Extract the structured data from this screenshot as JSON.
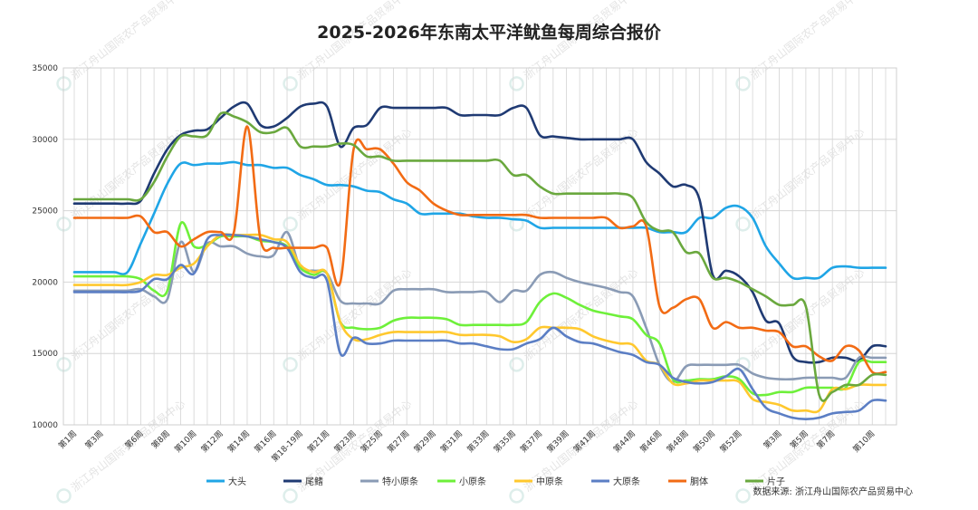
{
  "chart_data": {
    "type": "line",
    "title": "2025-2026年东南太平洋鱿鱼每周综合报价",
    "xlabel": "",
    "ylabel": "",
    "ylim": [
      10000,
      35000
    ],
    "yticks": [
      "10000",
      "15000",
      "20000",
      "25000",
      "30000",
      "35000"
    ],
    "grid": "vertical and horizontal",
    "legend_position": "bottom",
    "source_note": "数据来源:  浙江舟山国际农产品贸易中心",
    "watermark_text": "浙江舟山国际农产品贸易中心",
    "categories": [
      "第1周",
      "第2周",
      "第3周",
      "第4周",
      "第5周",
      "第6周",
      "第7周",
      "第8周",
      "第9周",
      "第10周",
      "第11周",
      "第12周",
      "第13周",
      "第14周",
      "第15周",
      "第16周",
      "第17周",
      "第18-19周",
      "第20周",
      "第21周",
      "第22周",
      "第23周",
      "第24周",
      "第25周",
      "第26周",
      "第27周",
      "第28周",
      "第29周",
      "第30周",
      "第31周",
      "第32周",
      "第33周",
      "第34周",
      "第35周",
      "第36周",
      "第37周",
      "第38周",
      "第39周",
      "第40周",
      "第41周",
      "第42周",
      "第43周",
      "第44周",
      "第45周",
      "第46周",
      "第47周",
      "第48周",
      "第49周",
      "第50周",
      "第51周",
      "第52周",
      "第1周",
      "第2周",
      "第3周",
      "第4周",
      "第5周",
      "第6周",
      "第7周",
      "第8周",
      "第9周",
      "第10周",
      "第11周"
    ],
    "xtick_labels": [
      "第1周",
      "第3周",
      "第6周",
      "第8周",
      "第10周",
      "第12周",
      "第14周",
      "第16周",
      "第18-19周",
      "第21周",
      "第23周",
      "第25周",
      "第27周",
      "第29周",
      "第31周",
      "第33周",
      "第35周",
      "第37周",
      "第39周",
      "第41周",
      "第44周",
      "第46周",
      "第48周",
      "第50周",
      "第52周",
      "第3周",
      "第5周",
      "第7周",
      "第10周"
    ],
    "series": [
      {
        "name": "大头",
        "color": "#1fa5e6",
        "values": [
          20700,
          20700,
          20700,
          20700,
          20700,
          22700,
          24800,
          26900,
          28300,
          28200,
          28300,
          28300,
          28400,
          28200,
          28200,
          28000,
          28000,
          27500,
          27200,
          26800,
          26800,
          26700,
          26400,
          26300,
          25800,
          25500,
          24800,
          24800,
          24800,
          24800,
          24600,
          24500,
          24500,
          24400,
          24300,
          23800,
          23800,
          23800,
          23800,
          23800,
          23800,
          23800,
          23800,
          23800,
          23500,
          23500,
          23500,
          24500,
          24500,
          25200,
          25300,
          24500,
          22500,
          21300,
          20300,
          20300,
          20300,
          21000,
          21100,
          21000,
          21000,
          21000
        ]
      },
      {
        "name": "尾鳍",
        "color": "#1f3a73",
        "values": [
          25500,
          25500,
          25500,
          25500,
          25500,
          25700,
          27600,
          29300,
          30300,
          30600,
          30700,
          31500,
          32300,
          32500,
          31000,
          30900,
          31500,
          32300,
          32500,
          32300,
          29500,
          30800,
          31000,
          32200,
          32200,
          32200,
          32200,
          32200,
          32200,
          31700,
          31700,
          31700,
          31700,
          32200,
          32200,
          30300,
          30200,
          30100,
          30000,
          30000,
          30000,
          30000,
          30000,
          28400,
          27600,
          26700,
          26800,
          25800,
          20500,
          20800,
          20400,
          19300,
          17300,
          17100,
          14800,
          14400,
          14400,
          14700,
          14700,
          14500,
          15500,
          15500
        ]
      },
      {
        "name": "特小原条",
        "color": "#8a9bb5",
        "values": [
          19400,
          19400,
          19400,
          19400,
          19400,
          19500,
          19000,
          18800,
          22800,
          20700,
          22700,
          22500,
          22500,
          22000,
          21800,
          21900,
          23500,
          21000,
          20800,
          20600,
          18700,
          18500,
          18500,
          18500,
          19400,
          19500,
          19500,
          19500,
          19300,
          19300,
          19300,
          19300,
          18600,
          19400,
          19400,
          20500,
          20700,
          20300,
          20000,
          19800,
          19600,
          19300,
          19000,
          16800,
          14200,
          13000,
          14100,
          14200,
          14200,
          14200,
          14200,
          13600,
          13300,
          13200,
          13200,
          13300,
          13300,
          13300,
          13300,
          14700,
          14700,
          14700
        ]
      },
      {
        "name": "小原条",
        "color": "#6ef03a",
        "values": [
          20400,
          20400,
          20400,
          20400,
          20400,
          20200,
          19400,
          19400,
          24100,
          22500,
          22600,
          23200,
          23200,
          23200,
          22900,
          22800,
          22500,
          21000,
          20500,
          20600,
          17200,
          16800,
          16700,
          16800,
          17300,
          17500,
          17500,
          17500,
          17400,
          17000,
          17000,
          17000,
          17000,
          17000,
          17200,
          18600,
          19200,
          18900,
          18400,
          18000,
          17800,
          17600,
          17400,
          16300,
          15700,
          13200,
          13100,
          13200,
          13200,
          13400,
          13200,
          12200,
          12100,
          12300,
          12300,
          12600,
          12600,
          12600,
          12600,
          14400,
          14400,
          14400
        ]
      },
      {
        "name": "中原条",
        "color": "#ffc82e",
        "values": [
          19800,
          19800,
          19800,
          19800,
          19800,
          20000,
          20500,
          20500,
          21000,
          21300,
          22500,
          23300,
          23300,
          23300,
          23300,
          23000,
          22800,
          21200,
          20700,
          20600,
          17200,
          16000,
          16000,
          16300,
          16500,
          16500,
          16500,
          16500,
          16500,
          16300,
          16300,
          16300,
          16200,
          15800,
          16000,
          16800,
          16800,
          16800,
          16700,
          16200,
          15900,
          15700,
          15600,
          14500,
          14200,
          12900,
          12900,
          13100,
          13100,
          13100,
          13000,
          11800,
          11600,
          11400,
          11000,
          11000,
          11000,
          12500,
          12500,
          12800,
          12800,
          12800
        ]
      },
      {
        "name": "大原条",
        "color": "#5b7ec4",
        "values": [
          19300,
          19300,
          19300,
          19300,
          19300,
          19400,
          20200,
          20200,
          21200,
          20600,
          23000,
          23300,
          23300,
          23200,
          23000,
          22800,
          22400,
          20700,
          20300,
          20100,
          15000,
          16100,
          15700,
          15700,
          15900,
          15900,
          15900,
          15900,
          15900,
          15700,
          15700,
          15500,
          15300,
          15300,
          15700,
          16000,
          16800,
          16200,
          15800,
          15700,
          15400,
          15100,
          14900,
          14400,
          14200,
          13300,
          13000,
          12900,
          13000,
          13400,
          13900,
          12500,
          11200,
          10800,
          10500,
          10400,
          10500,
          10800,
          10900,
          11000,
          11700,
          11700
        ]
      },
      {
        "name": "胴体",
        "color": "#f26b14",
        "values": [
          24500,
          24500,
          24500,
          24500,
          24500,
          24600,
          23500,
          23500,
          22500,
          23000,
          23500,
          23500,
          23500,
          30900,
          23000,
          22400,
          22400,
          22400,
          22400,
          22400,
          20000,
          29300,
          29300,
          29300,
          28300,
          27000,
          26400,
          25500,
          25000,
          24700,
          24700,
          24700,
          24700,
          24700,
          24700,
          24500,
          24500,
          24500,
          24500,
          24500,
          24500,
          23800,
          23900,
          23900,
          18300,
          18200,
          18800,
          18800,
          16800,
          17200,
          16800,
          16800,
          16600,
          16500,
          15500,
          15500,
          14800,
          14500,
          15500,
          15200,
          13700,
          13700
        ]
      },
      {
        "name": "片子",
        "color": "#6aa83e",
        "values": [
          25800,
          25800,
          25800,
          25800,
          25800,
          25800,
          27000,
          28800,
          30200,
          30200,
          30300,
          31800,
          31600,
          31200,
          30500,
          30500,
          30800,
          29500,
          29500,
          29500,
          29700,
          29600,
          28800,
          28800,
          28500,
          28500,
          28500,
          28500,
          28500,
          28500,
          28500,
          28500,
          28500,
          27500,
          27500,
          26700,
          26200,
          26200,
          26200,
          26200,
          26200,
          26200,
          25900,
          24200,
          23600,
          23500,
          22100,
          22000,
          20300,
          20300,
          20000,
          19500,
          19000,
          18400,
          18400,
          18300,
          12100,
          12300,
          12800,
          12800,
          13500,
          13500
        ]
      }
    ]
  }
}
